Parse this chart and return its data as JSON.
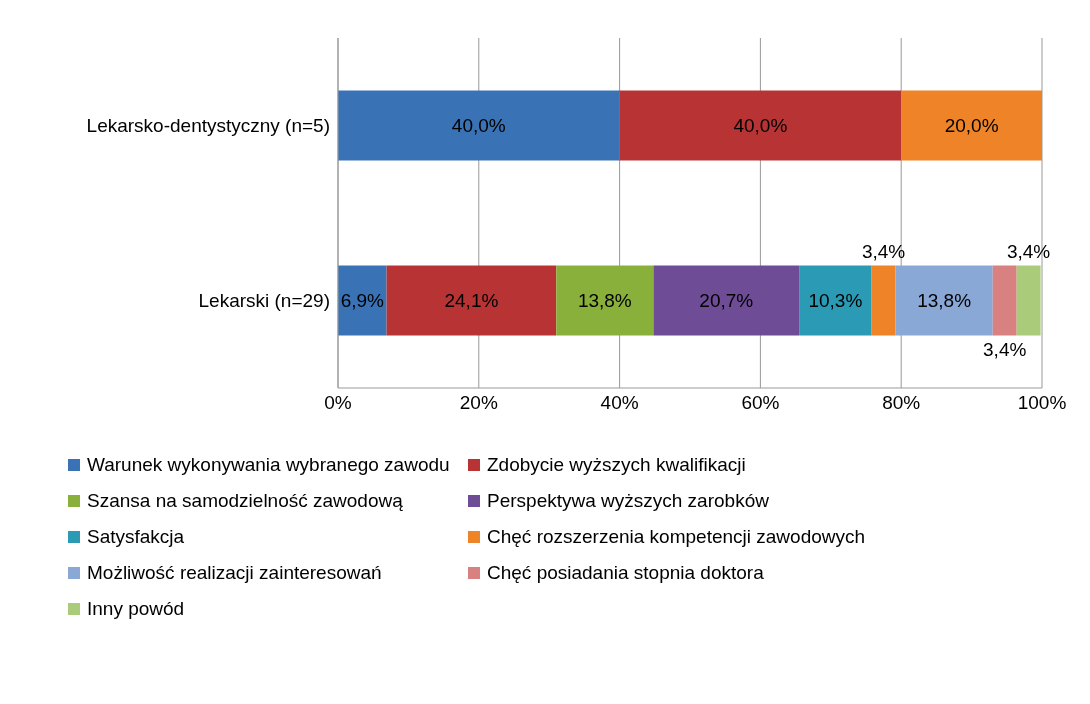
{
  "chart_data": {
    "type": "bar",
    "orientation": "horizontal",
    "stacked": true,
    "categories": [
      "Lekarsko-dentystyczny (n=5)",
      "Lekarski (n=29)"
    ],
    "series": [
      {
        "name": "Warunek wykonywania wybranego zawodu",
        "color": "#3a72b6",
        "values": [
          40.0,
          6.9
        ],
        "value_labels": [
          "40,0%",
          "6,9%"
        ]
      },
      {
        "name": "Zdobycie wyższych kwalifikacji",
        "color": "#b83434",
        "values": [
          40.0,
          24.1
        ],
        "value_labels": [
          "40,0%",
          "24,1%"
        ]
      },
      {
        "name": "Szansa na samodzielność zawodową",
        "color": "#8ab03c",
        "values": [
          null,
          13.8
        ],
        "value_labels": [
          null,
          "13,8%"
        ]
      },
      {
        "name": "Perspektywa wyższych zarobków",
        "color": "#6e4c96",
        "values": [
          null,
          20.7
        ],
        "value_labels": [
          null,
          "20,7%"
        ]
      },
      {
        "name": "Satysfakcja",
        "color": "#2b9bb5",
        "values": [
          null,
          10.3
        ],
        "value_labels": [
          null,
          "10,3%"
        ]
      },
      {
        "name": "Chęć rozszerzenia kompetencji zawodowych",
        "color": "#ee8427",
        "values": [
          20.0,
          3.4
        ],
        "value_labels": [
          "20,0%",
          "3,4%"
        ]
      },
      {
        "name": "Możliwość realizacji zainteresowań",
        "color": "#8aa8d6",
        "values": [
          null,
          13.8
        ],
        "value_labels": [
          null,
          "13,8%"
        ]
      },
      {
        "name": "Chęć posiadania stopnia doktora",
        "color": "#d98080",
        "values": [
          null,
          3.4
        ],
        "value_labels": [
          null,
          "3,4%"
        ]
      },
      {
        "name": "Inny powód",
        "color": "#aacb7a",
        "values": [
          null,
          3.4
        ],
        "value_labels": [
          null,
          "3,4%"
        ]
      }
    ],
    "xlim": [
      0,
      100
    ],
    "xticks": [
      {
        "value": 0,
        "label": "0%"
      },
      {
        "value": 20,
        "label": "20%"
      },
      {
        "value": 40,
        "label": "40%"
      },
      {
        "value": 60,
        "label": "60%"
      },
      {
        "value": 80,
        "label": "80%"
      },
      {
        "value": 100,
        "label": "100%"
      }
    ],
    "grid": "x",
    "legend": "bottom"
  }
}
